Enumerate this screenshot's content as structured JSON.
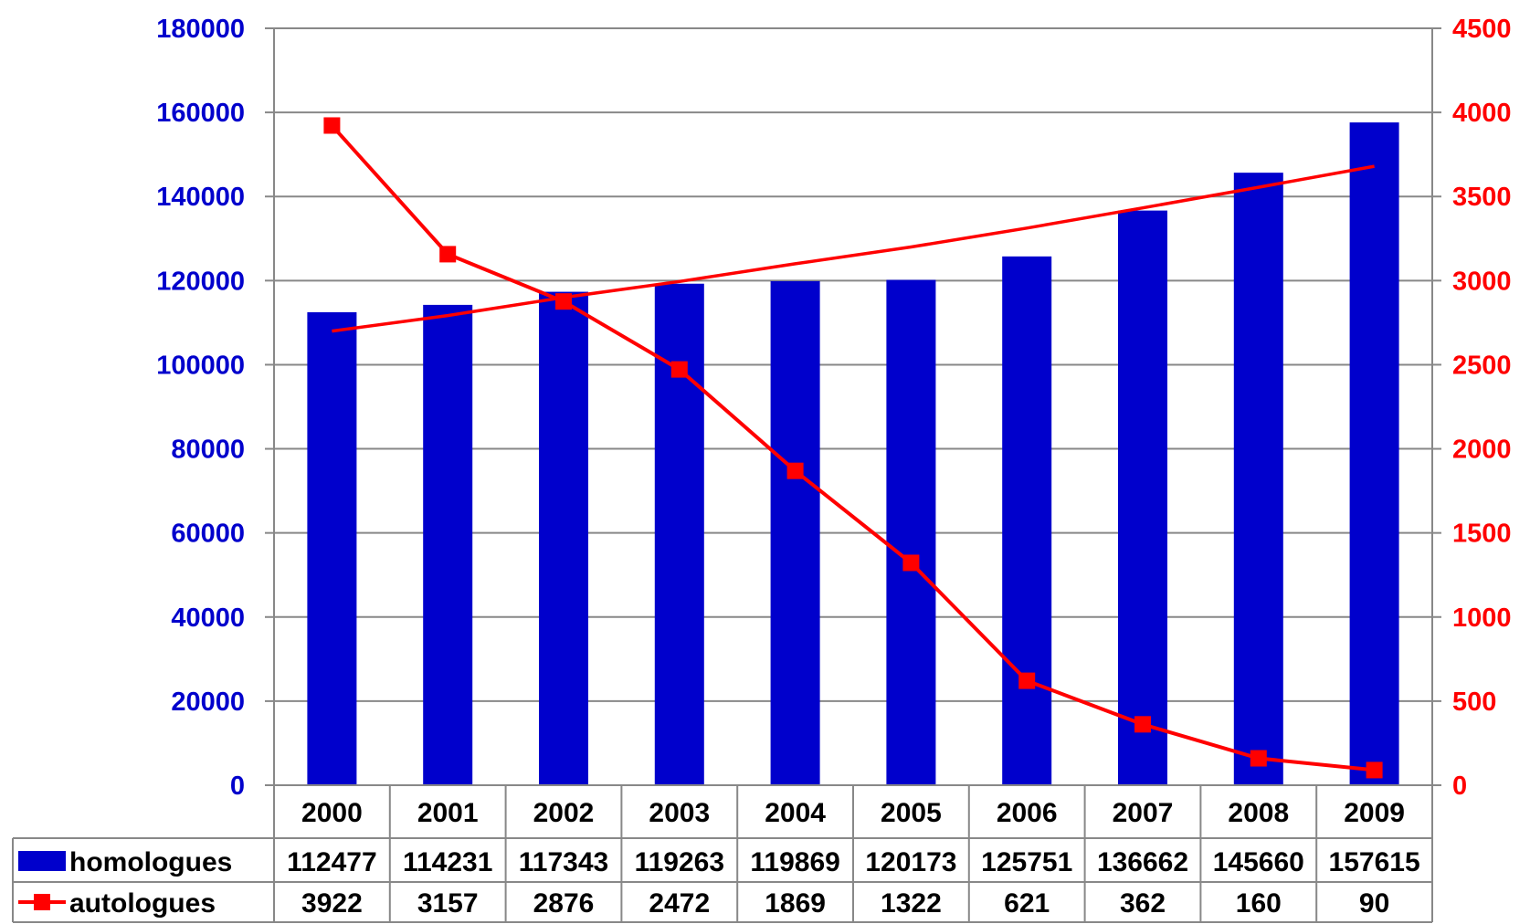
{
  "chart_data": {
    "type": "bar",
    "categories": [
      "2000",
      "2001",
      "2002",
      "2003",
      "2004",
      "2005",
      "2006",
      "2007",
      "2008",
      "2009"
    ],
    "series": [
      {
        "name": "homologues",
        "chart": "bar",
        "axis": "left",
        "color": "#0000cc",
        "values": [
          112477,
          114231,
          117343,
          119263,
          119869,
          120173,
          125751,
          136662,
          145660,
          157615
        ],
        "value_labels": [
          "112477",
          "114231",
          "117343",
          "119263",
          "119869",
          "120173",
          "125751",
          "136662",
          "145660",
          "157615"
        ]
      },
      {
        "name": "autologues",
        "chart": "line",
        "axis": "right",
        "color": "#ff0000",
        "marker": "square",
        "values": [
          3922,
          3157,
          2876,
          2472,
          1869,
          1322,
          621,
          362,
          160,
          90
        ],
        "value_labels": [
          "3922",
          "3157",
          "2876",
          "2472",
          "1869",
          "1322",
          "621",
          "362",
          "160",
          "90"
        ]
      }
    ],
    "trendline": {
      "of_series": "homologues",
      "type": "polynomial",
      "color": "#ff0000",
      "values": [
        108000,
        111700,
        116000,
        119800,
        124000,
        128000,
        132500,
        137300,
        142200,
        147200
      ]
    },
    "y_left": {
      "lim": [
        0,
        180000
      ],
      "ticks": [
        0,
        20000,
        40000,
        60000,
        80000,
        100000,
        120000,
        140000,
        160000,
        180000
      ],
      "tick_labels": [
        "0",
        "20000",
        "40000",
        "60000",
        "80000",
        "100000",
        "120000",
        "140000",
        "160000",
        "180000"
      ],
      "color": "#0000cc"
    },
    "y_right": {
      "lim": [
        0,
        4500
      ],
      "ticks": [
        0,
        500,
        1000,
        1500,
        2000,
        2500,
        3000,
        3500,
        4000,
        4500
      ],
      "tick_labels": [
        "0",
        "500",
        "1000",
        "1500",
        "2000",
        "2500",
        "3000",
        "3500",
        "4000",
        "4500"
      ],
      "color": "#ff0000"
    },
    "grid": true,
    "legend": "data-table-below",
    "title": "",
    "xlabel": "",
    "ylabel": ""
  }
}
